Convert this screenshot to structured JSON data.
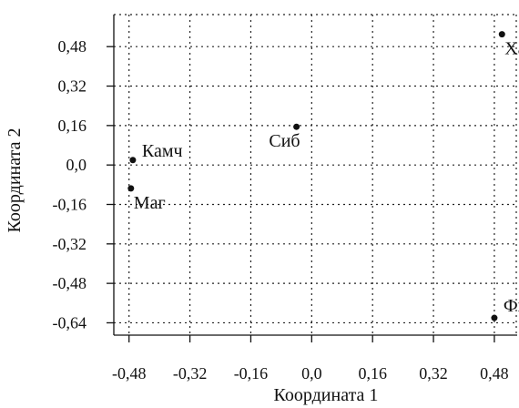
{
  "chart_data": {
    "type": "scatter",
    "title": "",
    "xlabel": "Координата 1",
    "ylabel": "Координата 2",
    "xlim": [
      -0.52,
      0.54
    ],
    "ylim": [
      -0.69,
      0.61
    ],
    "x_ticks": [
      {
        "value": -0.48,
        "label": "-0,48"
      },
      {
        "value": -0.32,
        "label": "-0,32"
      },
      {
        "value": -0.16,
        "label": "-0,16"
      },
      {
        "value": 0.0,
        "label": "0,0"
      },
      {
        "value": 0.16,
        "label": "0,16"
      },
      {
        "value": 0.32,
        "label": "0,32"
      },
      {
        "value": 0.48,
        "label": "0,48"
      }
    ],
    "y_ticks": [
      {
        "value": 0.48,
        "label": "0,48"
      },
      {
        "value": 0.32,
        "label": "0,32"
      },
      {
        "value": 0.16,
        "label": "0,16"
      },
      {
        "value": 0.0,
        "label": "0,0"
      },
      {
        "value": -0.16,
        "label": "-0,16"
      },
      {
        "value": -0.32,
        "label": "-0,32"
      },
      {
        "value": -0.48,
        "label": "-0,48"
      },
      {
        "value": -0.64,
        "label": "-0,64"
      }
    ],
    "grid": true,
    "points": [
      {
        "label": "Хаб",
        "x": 0.5,
        "y": 0.53,
        "label_pos": "below-right"
      },
      {
        "label": "Сиб",
        "x": -0.04,
        "y": 0.155,
        "label_pos": "below-left"
      },
      {
        "label": "Камч",
        "x": -0.47,
        "y": 0.02,
        "label_pos": "right"
      },
      {
        "label": "Маг",
        "x": -0.475,
        "y": -0.095,
        "label_pos": "below-right"
      },
      {
        "label": "Фи",
        "x": 0.48,
        "y": -0.62,
        "label_pos": "above-right"
      }
    ]
  }
}
